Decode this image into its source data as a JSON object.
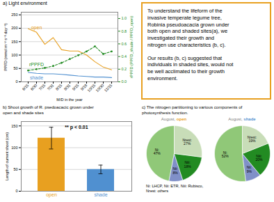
{
  "chart_data": [
    {
      "type": "line",
      "title": "a) Light environment",
      "categories": [
        "6/15",
        "6/30",
        "7/15",
        "7/31",
        "8/15",
        "8/31",
        "9/15",
        "9/18",
        "10/15",
        "10/30",
        "11/15"
      ],
      "xlabel": "M/D in the year",
      "ylabel": "PPFD (mmol m⁻² s⁻¹ day⁻¹)",
      "y2label": "rPPFD (PPFD_shade / PPFD_open)",
      "ylim": [
        0,
        260
      ],
      "yticks": [
        0,
        50,
        100,
        150,
        200,
        250
      ],
      "y2lim": [
        0,
        1.1
      ],
      "y2ticks": [
        {
          "value": 0,
          "label": "0.0"
        },
        0.2,
        0.4,
        0.6,
        0.8,
        {
          "value": 1,
          "label": "1.0"
        }
      ],
      "grid": true,
      "series": [
        {
          "name": "open",
          "color": "#E8A020",
          "values": [
            198,
            185,
            140,
            165,
            120,
            115,
            115,
            100,
            75,
            55,
            45
          ]
        },
        {
          "name": "shade",
          "color": "#5090D0",
          "values": [
            35,
            32,
            30,
            30,
            28,
            25,
            22,
            20,
            18,
            18,
            16
          ]
        },
        {
          "name": "rPPFD",
          "color": "#228B22",
          "axis": "y2",
          "line_style": "dashed",
          "marker": "dot",
          "values": [
            0.18,
            0.2,
            0.22,
            0.25,
            0.3,
            0.36,
            0.42,
            0.48,
            0.56,
            0.44,
            0.48
          ]
        }
      ]
    },
    {
      "type": "text",
      "color": "#E8A020",
      "annotations": [
        "To understand the lifeform of the\ninvasive temperate legume tree,\nRobinia pseudoacacia grown under\nboth open and shaded sites(a), we\ninvestigated their growth and\nnitrogen use characteristics (b, c).",
        "Our results (b, c) suggested that\nindividuals in shaded sites, would not\nbe well acclimated to their growth\nenvironment."
      ]
    },
    {
      "type": "bar",
      "title": "b) Shoot growth of R. psedoacacic grown under\nopen and shade sites",
      "categories": [
        "open",
        "shade"
      ],
      "values": [
        122,
        50
      ],
      "errors": [
        25,
        10
      ],
      "colors": [
        "#E8A020",
        "#5090D0"
      ],
      "ylabel": "Length of current shoot (cm)",
      "ylim": [
        0,
        160
      ],
      "yticks": [
        0,
        50,
        100,
        150
      ],
      "grid": true,
      "annotation": "** p < 0.01"
    },
    {
      "type": "pie",
      "title": "c) The nitrogen partitioning to various components of\nphotosynthesis function.",
      "subtitle": "August, open",
      "categories": [
        "Ni",
        "Nii",
        "Niii",
        "Nrest"
      ],
      "values": [
        47,
        8,
        18,
        27
      ],
      "value_labels": [
        "Ni:\n47%",
        "Nii:\n8%",
        "Niii:\n18%",
        "Nrest:\n27%"
      ],
      "colors": [
        "#90C878",
        "#8090C8",
        "#228B22",
        "#C8DDB8"
      ],
      "data_labels": true,
      "annotation": "Ni: LHCP, Nii: ETR, Niii: Rubisco,\nNrest: others"
    },
    {
      "type": "pie",
      "subtitle": "August, shade",
      "categories": [
        "Ni",
        "Nii",
        "Niii",
        "Nrest"
      ],
      "values": [
        52,
        9,
        20,
        19
      ],
      "value_labels": [
        "Ni:\n52%",
        "Nii:\n9%",
        "Niii:\n20%",
        "Nrest:\n19%"
      ],
      "colors": [
        "#90C878",
        "#8090C8",
        "#228B22",
        "#C8DDB8"
      ],
      "data_labels": true
    }
  ]
}
